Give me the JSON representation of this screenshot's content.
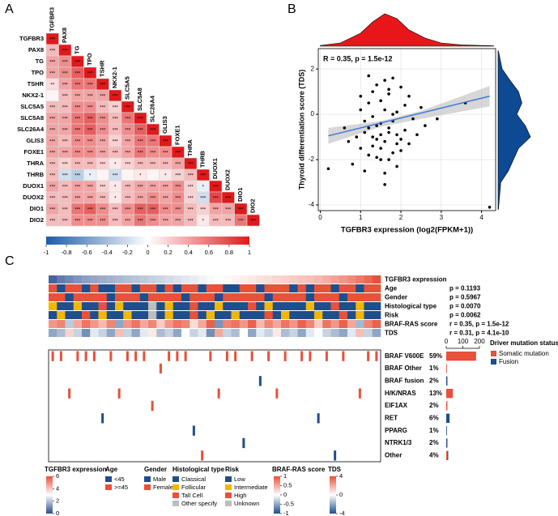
{
  "chart_data": [
    {
      "type": "heatmap",
      "label": "A",
      "labels": [
        "TGFBR3",
        "PAX8",
        "TG",
        "TPO",
        "TSHR",
        "NKX2-1",
        "SLC5A5",
        "SLC5A8",
        "SLC26A4",
        "GLIS3",
        "FOXE1",
        "THRA",
        "THRB",
        "DUOX1",
        "DUOX2",
        "DIO1",
        "DIO2"
      ],
      "values": [
        [
          1
        ],
        [
          0.3,
          1
        ],
        [
          0.4,
          0.5,
          1
        ],
        [
          0.4,
          0.5,
          0.7,
          1
        ],
        [
          0.15,
          0.4,
          0.6,
          0.6,
          1
        ],
        [
          0.05,
          0.3,
          0.4,
          0.4,
          0.4,
          1
        ],
        [
          0.3,
          0.3,
          0.5,
          0.5,
          0.3,
          0.2,
          1
        ],
        [
          0.4,
          0.4,
          0.6,
          0.7,
          0.5,
          0.3,
          0.6,
          1
        ],
        [
          0.4,
          0.4,
          0.6,
          0.7,
          0.5,
          0.3,
          0.5,
          0.7,
          1
        ],
        [
          0.4,
          0.3,
          0.5,
          0.5,
          0.4,
          0.2,
          0.4,
          0.6,
          0.6,
          1
        ],
        [
          0.4,
          0.4,
          0.5,
          0.5,
          0.4,
          0.3,
          0.4,
          0.6,
          0.5,
          0.5,
          1
        ],
        [
          0.3,
          0.2,
          0.3,
          0.3,
          0.2,
          0.1,
          0.2,
          0.3,
          0.3,
          0.3,
          0.4,
          1
        ],
        [
          0.3,
          -0.2,
          -0.3,
          -0.1,
          0.05,
          -0.2,
          0.05,
          0.1,
          0.05,
          0.1,
          0.2,
          0.3,
          1
        ],
        [
          0.4,
          0.3,
          0.4,
          0.4,
          0.2,
          0.1,
          0.3,
          0.4,
          0.4,
          0.4,
          0.5,
          0.2,
          -0.1,
          1
        ],
        [
          0.3,
          0.3,
          0.4,
          0.4,
          0.3,
          0.1,
          0.3,
          0.4,
          0.5,
          0.4,
          0.5,
          0.2,
          -0.2,
          0.8,
          1
        ],
        [
          0.4,
          0.3,
          0.6,
          0.7,
          0.5,
          0.3,
          0.5,
          0.7,
          0.7,
          0.5,
          0.5,
          0.3,
          0.2,
          0.4,
          0.4,
          1
        ],
        [
          0.3,
          0.3,
          0.5,
          0.5,
          0.5,
          0.3,
          0.4,
          0.6,
          0.5,
          0.4,
          0.4,
          0.3,
          0.1,
          0.3,
          0.3,
          0.6,
          1
        ]
      ],
      "stars": [
        [
          "***"
        ],
        [
          "***",
          "***"
        ],
        [
          "***",
          "***",
          "***"
        ],
        [
          "***",
          "***",
          "***",
          "***"
        ],
        [
          "**",
          "***",
          "***",
          "***",
          "***"
        ],
        [
          null,
          "***",
          "***",
          "***",
          "***",
          "***"
        ],
        [
          "***",
          "***",
          "***",
          "***",
          "***",
          "***",
          "***"
        ],
        [
          "***",
          "***",
          "***",
          "***",
          "***",
          "***",
          "***",
          "***"
        ],
        [
          "***",
          "***",
          "***",
          "***",
          "***",
          "***",
          "***",
          "***",
          "***"
        ],
        [
          "***",
          "***",
          "***",
          "***",
          "***",
          "***",
          "***",
          "***",
          "***",
          "***"
        ],
        [
          "***",
          "***",
          "***",
          "***",
          "***",
          "***",
          "***",
          "***",
          "***",
          "***",
          "***"
        ],
        [
          "***",
          "***",
          "***",
          "***",
          "***",
          "*",
          "***",
          "***",
          "***",
          "***",
          "***",
          "***"
        ],
        [
          "***",
          "***",
          "***",
          "*",
          null,
          "***",
          null,
          "*",
          null,
          "*",
          "***",
          "***",
          "***"
        ],
        [
          "***",
          "***",
          "***",
          "***",
          "***",
          "*",
          "***",
          "***",
          "***",
          "***",
          "***",
          "***",
          "*",
          "***"
        ],
        [
          "***",
          "***",
          "***",
          "***",
          "***",
          "*",
          "***",
          "***",
          "***",
          "***",
          "***",
          "***",
          "***",
          "***",
          "***"
        ],
        [
          "***",
          "***",
          "***",
          "***",
          "***",
          "***",
          "***",
          "***",
          "***",
          "***",
          "***",
          "***",
          "***",
          "***",
          "***",
          "***"
        ],
        [
          "***",
          "***",
          "***",
          "***",
          "***",
          "***",
          "***",
          "***",
          "***",
          "***",
          "***",
          "***",
          "*",
          "***",
          "***",
          "***",
          "***"
        ]
      ],
      "colormap": [
        "#1c5ca6",
        "#ffffff",
        "#e0191b"
      ],
      "clim": [
        -1,
        1
      ],
      "cticks": [
        -1,
        -0.8,
        -0.6,
        -0.4,
        -0.2,
        0,
        0.2,
        0.4,
        0.6,
        0.8,
        1
      ]
    },
    {
      "type": "scatter",
      "label": "B",
      "annotation": "R = 0.35, p = 1.5e-12",
      "x_label": "TGFBR3 expression (log2(FPKM+1))",
      "y_label": "Thyroid differentiation score (TDS)",
      "x": [
        1.6,
        1.2,
        2.0,
        1.8,
        0.9,
        1.5,
        2.2,
        1.1,
        1.7,
        1.3,
        2.5,
        0.7,
        1.9,
        1.4,
        1.6,
        2.1,
        1.0,
        1.8,
        1.2,
        1.5,
        2.3,
        0.8,
        1.7,
        1.3,
        1.9,
        1.6,
        2.0,
        1.1,
        1.4,
        2.4,
        1.5,
        1.8,
        1.0,
        1.7,
        1.2,
        2.1,
        1.6,
        1.3,
        1.9,
        0.6,
        1.4,
        2.6,
        1.5,
        1.8,
        1.1,
        1.7,
        2.0,
        1.3,
        1.6,
        0.2,
        4.2,
        3.6,
        2.9,
        1.2,
        1.9,
        1.5,
        2.2,
        1.0,
        1.7,
        1.4
      ],
      "y": [
        1.5,
        0.5,
        1.2,
        -0.3,
        -1.0,
        -1.5,
        0.8,
        -0.8,
        -2.0,
        1.0,
        0.3,
        -1.2,
        -1.3,
        -0.5,
        0.2,
        -0.7,
        0.8,
        1.6,
        -1.8,
        -0.9,
        -0.2,
        -2.2,
        0.9,
        -1.4,
        0.1,
        -2.6,
        -1.1,
        -0.3,
        1.3,
        -0.9,
        -0.4,
        -1.7,
        -1.5,
        -0.6,
        1.7,
        0.4,
        -3.1,
        -0.1,
        -2.3,
        -0.6,
        -1.9,
        -0.5,
        0.6,
        0.0,
        -2.5,
        1.1,
        -1.6,
        -1.0,
        -1.2,
        -2.4,
        -4.1,
        0.5,
        -0.2,
        -0.6,
        -0.9,
        -2.0,
        -1.3,
        0.2,
        -0.8,
        -1.1
      ],
      "color": "#000000",
      "fit": {
        "x": [
          0.2,
          4.2
        ],
        "y": [
          -0.95,
          0.8
        ],
        "color": "#3b78d8"
      },
      "ci": {
        "x": [
          0.2,
          1.5,
          2.5,
          4.2
        ],
        "lower": [
          -1.3,
          -0.55,
          -0.2,
          0.35
        ],
        "upper": [
          -0.6,
          -0.3,
          0.15,
          1.25
        ],
        "color": "#bdbdbd"
      },
      "x_density": {
        "x": [
          0,
          0.5,
          1,
          1.3,
          1.6,
          1.9,
          2.2,
          2.6,
          3,
          3.5,
          4.3
        ],
        "values": [
          0.02,
          0.1,
          0.4,
          0.75,
          1.0,
          0.85,
          0.5,
          0.25,
          0.1,
          0.04,
          0.01
        ],
        "color": "#e8161b"
      },
      "y_density": {
        "y": [
          -4.2,
          -3,
          -2.5,
          -1.5,
          -1,
          -0.5,
          0,
          0.5,
          1,
          1.5,
          2,
          2.8
        ],
        "values": [
          0.01,
          0.08,
          0.3,
          0.6,
          0.95,
          0.8,
          0.55,
          0.7,
          0.6,
          0.35,
          0.12,
          0.01
        ],
        "color": "#0d4a93"
      },
      "xlim": [
        -0.05,
        4.35
      ],
      "ylim": [
        -4.25,
        2.9
      ],
      "xticks": [
        0,
        1,
        2,
        3,
        4
      ],
      "yticks": [
        -4,
        -2,
        0,
        2
      ],
      "grid": true
    },
    {
      "type": "oncoprint",
      "label": "C",
      "tracks": [
        {
          "name": "TGFBR3 expression",
          "colormap": [
            "#2a4d8f",
            "#ffffff",
            "#e8513a"
          ],
          "lim": [
            0,
            6
          ],
          "ticks": [
            0,
            2,
            4,
            6
          ],
          "values": [
            0.4,
            0.8,
            1.0,
            1.2,
            1.4,
            1.5,
            1.6,
            1.7,
            1.8,
            1.9,
            2.0,
            2.1,
            2.2,
            2.3,
            2.4,
            2.5,
            2.6,
            2.7,
            2.8,
            2.9,
            3.0,
            3.1,
            3.2,
            3.3,
            3.4,
            3.5,
            3.6,
            3.7,
            3.8,
            3.9,
            4.0,
            4.1,
            4.2,
            4.4,
            4.6,
            4.8,
            5.0,
            5.3,
            5.6,
            6.0
          ]
        },
        {
          "name": "Age",
          "stat": "p = 0.1193",
          "categories": [
            "<45",
            ">=45"
          ],
          "colors": [
            "#1f4e8c",
            "#e8513a"
          ],
          "values": [
            1,
            0,
            1,
            1,
            0,
            1,
            0,
            0,
            1,
            1,
            0,
            1,
            1,
            0,
            1,
            0,
            1,
            1,
            0,
            1,
            1,
            0,
            0,
            1,
            1,
            0,
            1,
            1,
            1,
            0,
            1,
            0,
            1,
            1,
            0,
            1,
            1,
            0,
            1,
            1
          ]
        },
        {
          "name": "Gender",
          "stat": "p = 0.5967",
          "categories": [
            "Male",
            "Female"
          ],
          "colors": [
            "#1f4e8c",
            "#e8513a"
          ],
          "values": [
            1,
            1,
            0,
            1,
            1,
            1,
            1,
            0,
            1,
            1,
            1,
            0,
            1,
            1,
            1,
            1,
            0,
            1,
            1,
            1,
            0,
            1,
            1,
            1,
            1,
            1,
            0,
            1,
            1,
            1,
            1,
            0,
            1,
            1,
            1,
            0,
            1,
            1,
            1,
            1
          ]
        },
        {
          "name": "Histological type",
          "stat": "p = 0.0070",
          "categories": [
            "Classical",
            "Follicular",
            "Tall Cell",
            "Other specify"
          ],
          "colors": [
            "#1f4e8c",
            "#f2b705",
            "#e8513a",
            "#bdbdbd"
          ],
          "values": [
            1,
            0,
            0,
            1,
            0,
            0,
            2,
            0,
            1,
            0,
            0,
            0,
            3,
            0,
            1,
            0,
            0,
            2,
            0,
            0,
            1,
            0,
            0,
            0,
            2,
            0,
            1,
            0,
            0,
            0,
            0,
            1,
            0,
            0,
            2,
            0,
            0,
            1,
            0,
            0
          ]
        },
        {
          "name": "Risk",
          "stat": "p = 0.0062",
          "categories": [
            "Low",
            "Intermediate",
            "High",
            "Unknown"
          ],
          "colors": [
            "#1f4e8c",
            "#f2b705",
            "#e8513a",
            "#bdbdbd"
          ],
          "values": [
            0,
            1,
            0,
            0,
            2,
            0,
            1,
            0,
            0,
            1,
            0,
            0,
            3,
            0,
            1,
            0,
            0,
            2,
            0,
            1,
            0,
            0,
            1,
            0,
            0,
            0,
            2,
            0,
            1,
            0,
            0,
            0,
            1,
            0,
            0,
            2,
            0,
            1,
            0,
            0
          ]
        },
        {
          "name": "BRAF-RAS score",
          "stat": "r = 0.35, p = 1.5e-12",
          "colormap": [
            "#1f4e8c",
            "#ffffff",
            "#e8513a"
          ],
          "lim": [
            -1,
            1
          ],
          "ticks": [
            -1,
            -0.5,
            0,
            0.5,
            1
          ],
          "values": [
            0.6,
            0.7,
            -0.3,
            0.5,
            0.8,
            0.6,
            0.4,
            0.7,
            -0.5,
            0.6,
            0.8,
            0.5,
            0.7,
            0.3,
            0.6,
            0.8,
            0.7,
            0.2,
            0.5,
            0.9,
            -0.6,
            0.7,
            0.8,
            0.6,
            0.9,
            0.4,
            0.7,
            0.5,
            0.8,
            0.6,
            0.9,
            0.7,
            0.3,
            0.8,
            0.6,
            0.9,
            0.5,
            -0.4,
            0.7,
            0.9
          ]
        },
        {
          "name": "TDS",
          "stat": "r = 0.31, p = 4.1e-10",
          "colormap": [
            "#1f4e8c",
            "#ffffff",
            "#e8513a"
          ],
          "lim": [
            -4,
            4
          ],
          "ticks": [
            -4,
            0,
            4
          ],
          "values": [
            -2,
            -1.5,
            1,
            -1,
            -2.5,
            -0.5,
            -1,
            -2,
            1.5,
            -1,
            -2,
            -0.5,
            0.5,
            -1.5,
            -1,
            -2,
            0,
            -1,
            -0.5,
            -2.5,
            2,
            -1,
            -1.5,
            0,
            -2,
            -0.5,
            -1,
            0.5,
            -1.5,
            -1,
            -2,
            -0.5,
            0,
            -1,
            -1.5,
            -2,
            -0.5,
            1.5,
            -1,
            -2
          ]
        }
      ],
      "genes": [
        {
          "name": "BRAF V600E",
          "percent": "59%",
          "somatic_samples": [
            0,
            1,
            3,
            4,
            5,
            7,
            9,
            10,
            11,
            14,
            15,
            16,
            19,
            21,
            22,
            24,
            26,
            28,
            30,
            31,
            33,
            35,
            38,
            39
          ],
          "somatic_count": 180
        },
        {
          "name": "BRAF Other",
          "percent": "1%",
          "somatic_samples": [
            13
          ],
          "somatic_count": 4
        },
        {
          "name": "BRAF fusion",
          "percent": "2%",
          "fusion_samples": [
            25
          ],
          "fusion_count": 7
        },
        {
          "name": "H/K/NRAS",
          "percent": "13%",
          "somatic_samples": [
            2,
            8,
            20,
            27,
            37
          ],
          "somatic_count": 40
        },
        {
          "name": "EIF1AX",
          "percent": "2%",
          "somatic_samples": [
            12
          ],
          "somatic_count": 7
        },
        {
          "name": "RET",
          "percent": "6%",
          "fusion_samples": [
            6,
            32
          ],
          "fusion_count": 20
        },
        {
          "name": "PPARG",
          "percent": "1%",
          "fusion_samples": [
            17
          ],
          "fusion_count": 4
        },
        {
          "name": "NTRK1/3",
          "percent": "2%",
          "fusion_samples": [
            23
          ],
          "fusion_count": 7
        },
        {
          "name": "Other",
          "percent": "4%",
          "somatic_samples": [
            18
          ],
          "somatic_count": 6,
          "fusion_samples": [
            34
          ],
          "fusion_count": 6
        }
      ],
      "mutation_legend": {
        "title": "Driver mutation status",
        "somatic": {
          "name": "Somatic mutation",
          "color": "#e8513a"
        },
        "fusion": {
          "name": "Fusion",
          "color": "#1f4e8c"
        }
      },
      "count_lim": [
        0,
        200
      ],
      "count_ticks": [
        0,
        100,
        200
      ]
    }
  ]
}
